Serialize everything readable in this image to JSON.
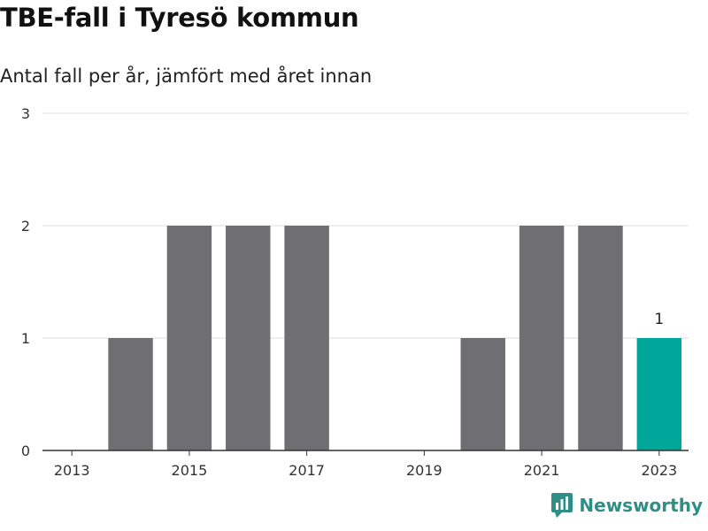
{
  "header": {
    "title": "TBE-fall i Tyresö kommun",
    "subtitle": "Antal fall per år, jämfört med året innan"
  },
  "brand": {
    "name": "Newsworthy",
    "icon": "newsworthy-logo-icon",
    "color": "#2f8f86"
  },
  "colors": {
    "bar": "#6e6e73",
    "highlight": "#00a69a",
    "grid": "#dddddd",
    "axis": "#333333"
  },
  "chart_data": {
    "type": "bar",
    "title": "TBE-fall i Tyresö kommun",
    "subtitle": "Antal fall per år, jämfört med året innan",
    "categories": [
      "2013",
      "2014",
      "2015",
      "2016",
      "2017",
      "2018",
      "2019",
      "2020",
      "2021",
      "2022",
      "2023"
    ],
    "values": [
      0,
      1,
      2,
      2,
      2,
      0,
      0,
      1,
      2,
      2,
      1
    ],
    "highlight_index": 10,
    "data_labels": [
      {
        "category": "2023",
        "text": "1"
      }
    ],
    "x_tick_labels": [
      "2013",
      "2015",
      "2017",
      "2019",
      "2021",
      "2023"
    ],
    "y_tick_labels": [
      "0",
      "1",
      "2",
      "3"
    ],
    "ylim": [
      0,
      3
    ],
    "xlabel": "",
    "ylabel": "",
    "grid": true,
    "legend": false
  }
}
